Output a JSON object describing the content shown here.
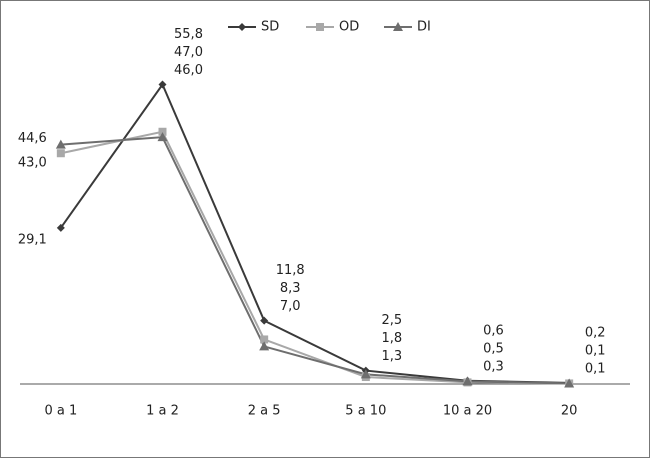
{
  "chart_data": {
    "type": "line",
    "categories": [
      "0 a 1",
      "1 a 2",
      "2 a 5",
      "5 a 10",
      "10 a 20",
      "20"
    ],
    "series": [
      {
        "name": "SD",
        "color": "#3a3a3a",
        "marker": "diamond",
        "values": [
          29.1,
          55.8,
          11.8,
          2.5,
          0.6,
          0.2
        ],
        "value_labels": [
          "29,1",
          "55,8",
          "11,8",
          "2,5",
          "0,6",
          "0,2"
        ]
      },
      {
        "name": "OD",
        "color": "#a8a8a8",
        "marker": "square",
        "values": [
          43.0,
          47.0,
          8.3,
          1.3,
          0.3,
          0.1
        ],
        "value_labels": [
          "43,0",
          "47,0",
          "8,3",
          "1,3",
          "0,3",
          "0,1"
        ]
      },
      {
        "name": "DI",
        "color": "#6e6e6e",
        "marker": "triangle",
        "values": [
          44.6,
          46.0,
          7.0,
          1.8,
          0.5,
          0.1
        ],
        "value_labels": [
          "44,6",
          "46,0",
          "7,0",
          "1,8",
          "0,5",
          "0,1"
        ]
      }
    ],
    "ylim": [
      0,
      60
    ],
    "legend": "top"
  }
}
